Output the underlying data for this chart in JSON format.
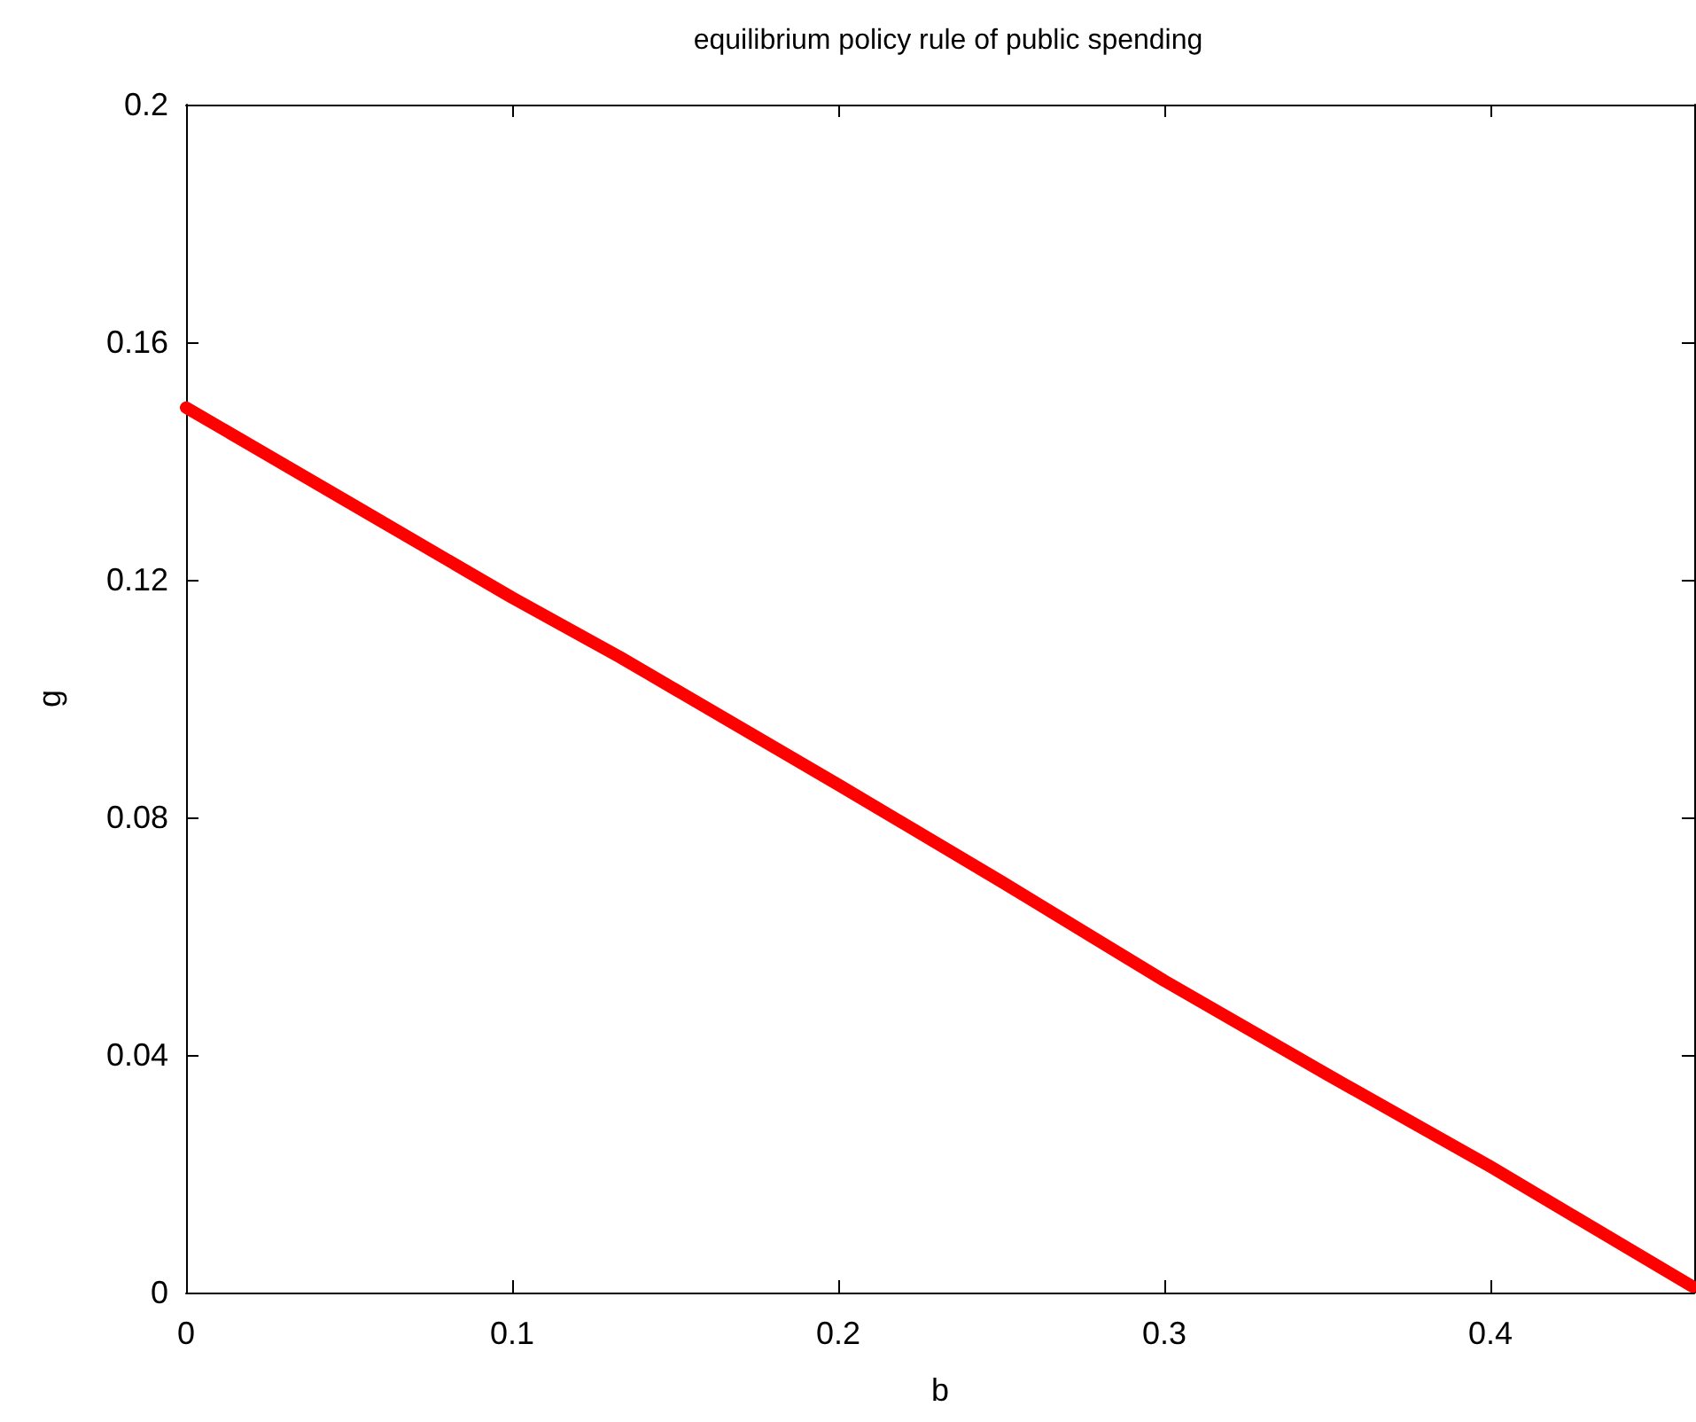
{
  "chart_data": {
    "type": "line",
    "title": "equilibrium policy rule of public spending",
    "xlabel": "b",
    "ylabel": "g",
    "series": [
      {
        "color": "#ff0000",
        "x": [
          0,
          0.05,
          0.1,
          0.133,
          0.2,
          0.25,
          0.3,
          0.35,
          0.4,
          0.462
        ],
        "values": [
          0.149,
          0.133,
          0.117,
          0.107,
          0.0855,
          0.0692,
          0.0525,
          0.0367,
          0.0212,
          0.001
        ]
      }
    ],
    "xlim": [
      0,
      0.4625
    ],
    "xticks": [
      0,
      0.1,
      0.2,
      0.3,
      0.4
    ],
    "ylim": [
      0,
      0.2
    ],
    "yticks": [
      0,
      0.04,
      0.08,
      0.12,
      0.16,
      0.2
    ],
    "line_style": "solid"
  }
}
